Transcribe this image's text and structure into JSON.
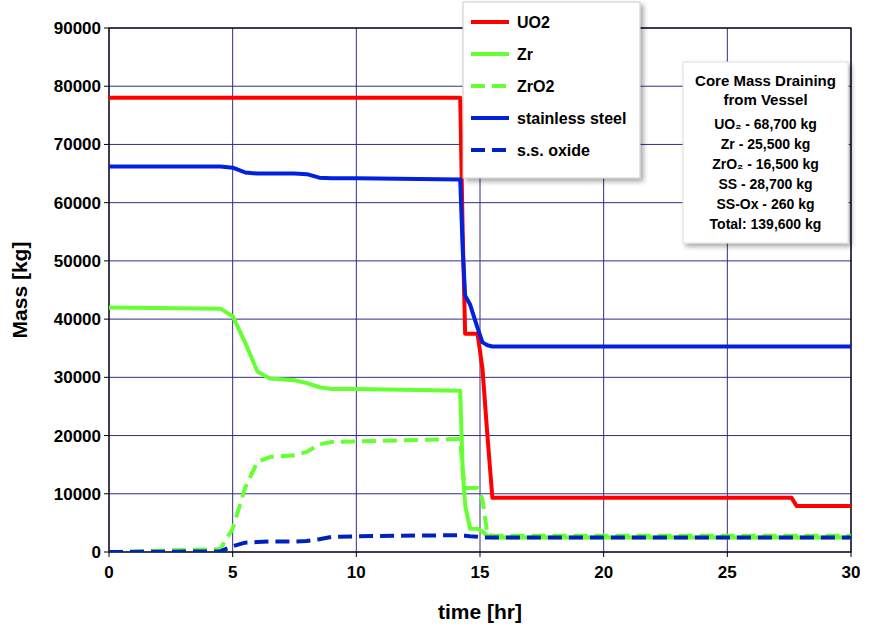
{
  "chart_data": {
    "type": "line",
    "x_label": "time [hr]",
    "y_label": "Mass [kg]",
    "xlim": [
      0,
      30
    ],
    "ylim": [
      0,
      90000
    ],
    "xticks": [
      0,
      5,
      10,
      15,
      20,
      25,
      30
    ],
    "yticks": [
      0,
      10000,
      20000,
      30000,
      40000,
      50000,
      60000,
      70000,
      80000,
      90000
    ],
    "grid": true,
    "legend": "top",
    "x": [
      0,
      4.5,
      5,
      5.5,
      6,
      6.5,
      7.5,
      8,
      8.5,
      9,
      10,
      14.2,
      14.3,
      14.4,
      14.6,
      14.9,
      15.1,
      15.3,
      15.5,
      20,
      25,
      27.6,
      27.8,
      30
    ],
    "series": [
      {
        "name": "UO2",
        "color": "#ff0000",
        "line_style": "solid",
        "values": [
          78000,
          78000,
          78000,
          78000,
          78000,
          78000,
          78000,
          78000,
          78000,
          78000,
          78000,
          78000,
          55000,
          37500,
          37500,
          37500,
          31500,
          20000,
          9300,
          9300,
          9300,
          9300,
          7900,
          7900
        ]
      },
      {
        "name": "Zr",
        "color": "#66ff33",
        "line_style": "solid",
        "values": [
          42000,
          41800,
          40500,
          36000,
          31000,
          29800,
          29500,
          29000,
          28300,
          28000,
          28000,
          27700,
          14000,
          8000,
          4000,
          4000,
          3500,
          2800,
          2500,
          2500,
          2500,
          2500,
          2500,
          2500
        ]
      },
      {
        "name": "ZrO2",
        "color": "#66ff33",
        "line_style": "dashed",
        "values": [
          0,
          500,
          4000,
          11000,
          15500,
          16300,
          16600,
          17200,
          18500,
          18900,
          19000,
          19400,
          14000,
          11000,
          11000,
          11000,
          9000,
          3000,
          2800,
          2800,
          2800,
          2800,
          2800,
          2800
        ]
      },
      {
        "name": "stainless steel",
        "color": "#0022dd",
        "line_style": "solid",
        "values": [
          66200,
          66200,
          66000,
          65200,
          65000,
          65000,
          65000,
          64900,
          64300,
          64200,
          64200,
          64000,
          52000,
          44000,
          42500,
          38500,
          36000,
          35500,
          35300,
          35300,
          35300,
          35300,
          35300,
          35300
        ]
      },
      {
        "name": "s.s. oxide",
        "color": "#0022bb",
        "line_style": "dashed",
        "values": [
          0,
          100,
          1000,
          1600,
          1700,
          1800,
          1800,
          1900,
          2200,
          2600,
          2700,
          2900,
          2800,
          2800,
          2700,
          2600,
          2500,
          2500,
          2500,
          2500,
          2500,
          2500,
          2500,
          2500
        ]
      }
    ],
    "annotation": {
      "title": "Core Mass Draining from Vessel",
      "lines": [
        "UO₂ - 68,700 kg",
        "Zr - 25,500 kg",
        "ZrO₂ - 16,500 kg",
        "SS - 28,700 kg",
        "SS-Ox - 260 kg",
        "Total: 139,600 kg"
      ]
    }
  }
}
